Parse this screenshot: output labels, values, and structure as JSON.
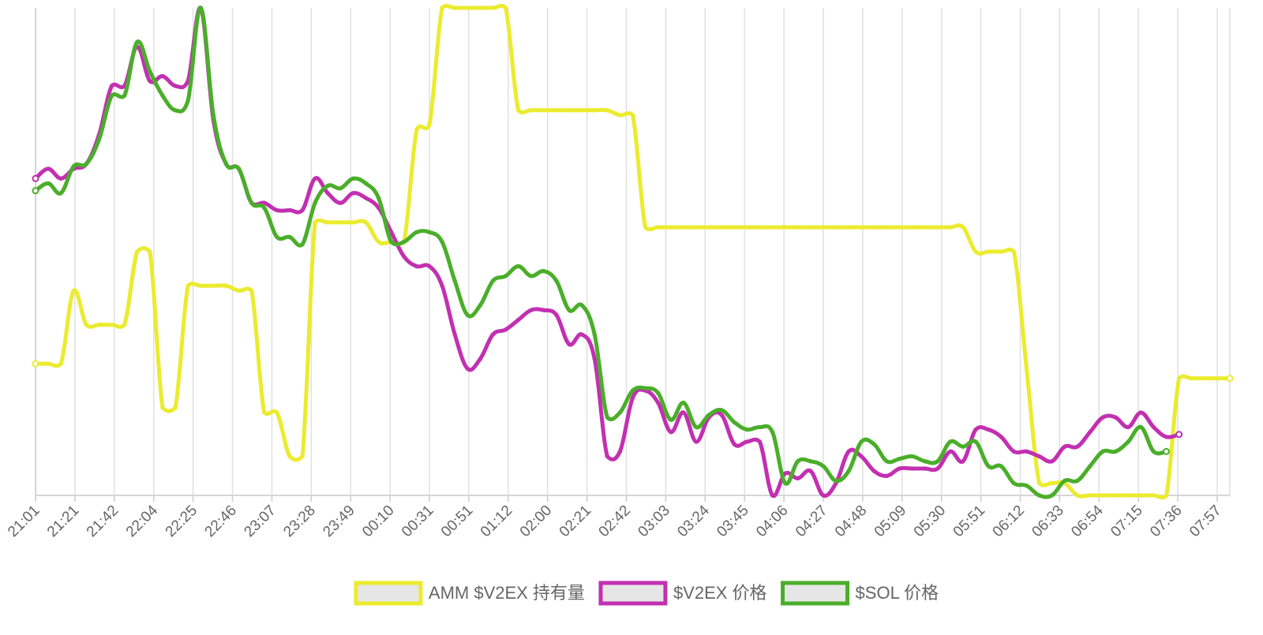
{
  "chart_data": {
    "type": "line",
    "title": "",
    "xlabel": "",
    "ylabel": "",
    "x_ticks": [
      "21:01",
      "21:21",
      "21:42",
      "22:04",
      "22:25",
      "22:46",
      "23:07",
      "23:28",
      "23:49",
      "00:10",
      "00:31",
      "00:51",
      "01:12",
      "02:00",
      "02:21",
      "02:42",
      "03:03",
      "03:24",
      "03:45",
      "04:06",
      "04:27",
      "04:48",
      "05:09",
      "05:30",
      "05:51",
      "06:12",
      "06:33",
      "06:54",
      "07:15",
      "07:36",
      "07:57"
    ],
    "y_axis_visible": false,
    "ylim": [
      0,
      100
    ],
    "grid": "vertical",
    "legend_position": "bottom",
    "series": [
      {
        "name": "AMM $V2EX 持有量",
        "color": "#ebeb2f",
        "points": [
          [
            0,
            27
          ],
          [
            1,
            27
          ],
          [
            2,
            27
          ],
          [
            3,
            42
          ],
          [
            4,
            35
          ],
          [
            5,
            35
          ],
          [
            6,
            35
          ],
          [
            7,
            35
          ],
          [
            8,
            50
          ],
          [
            9,
            50
          ],
          [
            10,
            18
          ],
          [
            11,
            18
          ],
          [
            12,
            43
          ],
          [
            13,
            43
          ],
          [
            14,
            43
          ],
          [
            15,
            43
          ],
          [
            16,
            42
          ],
          [
            17,
            42
          ],
          [
            18,
            17
          ],
          [
            19,
            17
          ],
          [
            20,
            8
          ],
          [
            21,
            8
          ],
          [
            22,
            56
          ],
          [
            23,
            56
          ],
          [
            24,
            56
          ],
          [
            25,
            56
          ],
          [
            26,
            56
          ],
          [
            27,
            52
          ],
          [
            28,
            52
          ],
          [
            29,
            52
          ],
          [
            30,
            75
          ],
          [
            31,
            76
          ],
          [
            32,
            100
          ],
          [
            33,
            100
          ],
          [
            34,
            100
          ],
          [
            35,
            100
          ],
          [
            36,
            100
          ],
          [
            37,
            100
          ],
          [
            38,
            79
          ],
          [
            39,
            79
          ],
          [
            40,
            79
          ],
          [
            41,
            79
          ],
          [
            42,
            79
          ],
          [
            43,
            79
          ],
          [
            44,
            79
          ],
          [
            45,
            79
          ],
          [
            46,
            78
          ],
          [
            47,
            78
          ],
          [
            48,
            55
          ],
          [
            49,
            55
          ],
          [
            50,
            55
          ],
          [
            51,
            55
          ],
          [
            52,
            55
          ],
          [
            53,
            55
          ],
          [
            54,
            55
          ],
          [
            55,
            55
          ],
          [
            56,
            55
          ],
          [
            57,
            55
          ],
          [
            58,
            55
          ],
          [
            59,
            55
          ],
          [
            60,
            55
          ],
          [
            61,
            55
          ],
          [
            62,
            55
          ],
          [
            63,
            55
          ],
          [
            64,
            55
          ],
          [
            65,
            55
          ],
          [
            66,
            55
          ],
          [
            67,
            55
          ],
          [
            68,
            55
          ],
          [
            69,
            55
          ],
          [
            70,
            55
          ],
          [
            71,
            55
          ],
          [
            72,
            55
          ],
          [
            73,
            55
          ],
          [
            74,
            50
          ],
          [
            75,
            50
          ],
          [
            76,
            50
          ],
          [
            77,
            50
          ],
          [
            78,
            26
          ],
          [
            79,
            2.5
          ],
          [
            80,
            2.5
          ],
          [
            81,
            2.5
          ],
          [
            82,
            0
          ],
          [
            83,
            0
          ],
          [
            84,
            0
          ],
          [
            85,
            0
          ],
          [
            86,
            0
          ],
          [
            87,
            0
          ],
          [
            88,
            0
          ],
          [
            89,
            0
          ],
          [
            90,
            24
          ],
          [
            91,
            24
          ],
          [
            92,
            24
          ],
          [
            93,
            24
          ],
          [
            94,
            24
          ]
        ]
      },
      {
        "name": "$V2EX 价格",
        "color": "#c230b1",
        "points": [
          [
            0,
            65
          ],
          [
            1,
            67
          ],
          [
            2,
            65
          ],
          [
            3,
            67
          ],
          [
            4,
            68
          ],
          [
            5,
            74
          ],
          [
            6,
            84
          ],
          [
            7,
            84
          ],
          [
            8,
            92
          ],
          [
            9,
            85
          ],
          [
            10,
            86
          ],
          [
            11,
            84
          ],
          [
            12,
            85
          ],
          [
            13,
            100
          ],
          [
            14,
            77
          ],
          [
            15,
            68
          ],
          [
            16,
            67
          ],
          [
            17,
            60
          ],
          [
            18,
            60
          ],
          [
            19,
            58.5
          ],
          [
            20,
            58.5
          ],
          [
            21,
            58.5
          ],
          [
            22,
            65
          ],
          [
            23,
            62
          ],
          [
            24,
            60
          ],
          [
            25,
            62
          ],
          [
            26,
            61
          ],
          [
            27,
            59
          ],
          [
            28,
            54
          ],
          [
            29,
            49
          ],
          [
            30,
            47
          ],
          [
            31,
            47
          ],
          [
            32,
            43
          ],
          [
            33,
            33
          ],
          [
            34,
            26
          ],
          [
            35,
            28
          ],
          [
            36,
            33
          ],
          [
            37,
            34
          ],
          [
            38,
            36
          ],
          [
            39,
            38
          ],
          [
            40,
            38
          ],
          [
            41,
            37
          ],
          [
            42,
            31
          ],
          [
            43,
            33
          ],
          [
            44,
            28
          ],
          [
            45,
            8
          ],
          [
            46,
            9
          ],
          [
            47,
            20
          ],
          [
            48,
            21.5
          ],
          [
            49,
            19
          ],
          [
            50,
            13
          ],
          [
            51,
            17
          ],
          [
            52,
            11
          ],
          [
            53,
            16
          ],
          [
            54,
            16.5
          ],
          [
            55,
            10.5
          ],
          [
            56,
            11
          ],
          [
            57,
            11
          ],
          [
            58,
            0
          ],
          [
            59,
            4.5
          ],
          [
            60,
            3.5
          ],
          [
            61,
            5
          ],
          [
            62,
            0
          ],
          [
            63,
            2.5
          ],
          [
            64,
            9
          ],
          [
            65,
            8
          ],
          [
            66,
            5
          ],
          [
            67,
            4
          ],
          [
            68,
            5.5
          ],
          [
            69,
            5.5
          ],
          [
            70,
            5.5
          ],
          [
            71,
            5.5
          ],
          [
            72,
            9
          ],
          [
            73,
            7
          ],
          [
            74,
            13.5
          ],
          [
            75,
            13.5
          ],
          [
            76,
            12
          ],
          [
            77,
            9
          ],
          [
            78,
            9
          ],
          [
            79,
            8
          ],
          [
            80,
            7
          ],
          [
            81,
            10
          ],
          [
            82,
            10
          ],
          [
            83,
            13
          ],
          [
            84,
            16
          ],
          [
            85,
            16
          ],
          [
            86,
            14
          ],
          [
            87,
            17
          ],
          [
            88,
            14
          ],
          [
            89,
            12
          ],
          [
            90,
            12.5
          ]
        ]
      },
      {
        "name": "$SOL 价格",
        "color": "#4aae2a",
        "points": [
          [
            0,
            62.5
          ],
          [
            1,
            64
          ],
          [
            2,
            62
          ],
          [
            3,
            67.5
          ],
          [
            4,
            68
          ],
          [
            5,
            73
          ],
          [
            6,
            82
          ],
          [
            7,
            82
          ],
          [
            8,
            93
          ],
          [
            9,
            87
          ],
          [
            10,
            82
          ],
          [
            11,
            79
          ],
          [
            12,
            81
          ],
          [
            13,
            100
          ],
          [
            14,
            78
          ],
          [
            15,
            68
          ],
          [
            16,
            67
          ],
          [
            17,
            60
          ],
          [
            18,
            59
          ],
          [
            19,
            53
          ],
          [
            20,
            53
          ],
          [
            21,
            51.5
          ],
          [
            22,
            60
          ],
          [
            23,
            63.5
          ],
          [
            24,
            63
          ],
          [
            25,
            65
          ],
          [
            26,
            64
          ],
          [
            27,
            61
          ],
          [
            28,
            52
          ],
          [
            29,
            52
          ],
          [
            30,
            54
          ],
          [
            31,
            54
          ],
          [
            32,
            52
          ],
          [
            33,
            44
          ],
          [
            34,
            37
          ],
          [
            35,
            39
          ],
          [
            36,
            44
          ],
          [
            37,
            45
          ],
          [
            38,
            47
          ],
          [
            39,
            45
          ],
          [
            40,
            46
          ],
          [
            41,
            44
          ],
          [
            42,
            38
          ],
          [
            43,
            39
          ],
          [
            44,
            33
          ],
          [
            45,
            16
          ],
          [
            46,
            17
          ],
          [
            47,
            21.5
          ],
          [
            48,
            22
          ],
          [
            49,
            21
          ],
          [
            50,
            15.5
          ],
          [
            51,
            19
          ],
          [
            52,
            14
          ],
          [
            53,
            16.5
          ],
          [
            54,
            17.5
          ],
          [
            55,
            15
          ],
          [
            56,
            13.5
          ],
          [
            57,
            14
          ],
          [
            58,
            13
          ],
          [
            59,
            2.5
          ],
          [
            60,
            7
          ],
          [
            61,
            7
          ],
          [
            62,
            6
          ],
          [
            63,
            3
          ],
          [
            64,
            5
          ],
          [
            65,
            11
          ],
          [
            66,
            10.5
          ],
          [
            67,
            7
          ],
          [
            68,
            7.5
          ],
          [
            69,
            8
          ],
          [
            70,
            7
          ],
          [
            71,
            7
          ],
          [
            72,
            11
          ],
          [
            73,
            10
          ],
          [
            74,
            11
          ],
          [
            75,
            6
          ],
          [
            76,
            6
          ],
          [
            77,
            2.5
          ],
          [
            78,
            2
          ],
          [
            79,
            0
          ],
          [
            80,
            0
          ],
          [
            81,
            3
          ],
          [
            82,
            3
          ],
          [
            83,
            6
          ],
          [
            84,
            9
          ],
          [
            85,
            9
          ],
          [
            86,
            11
          ],
          [
            87,
            14
          ],
          [
            88,
            9
          ],
          [
            89,
            9
          ]
        ]
      }
    ]
  },
  "legend": [
    {
      "label": "AMM $V2EX 持有量",
      "color": "#ebeb2f"
    },
    {
      "label": "$V2EX 价格",
      "color": "#c230b1"
    },
    {
      "label": "$SOL 价格",
      "color": "#4aae2a"
    }
  ]
}
